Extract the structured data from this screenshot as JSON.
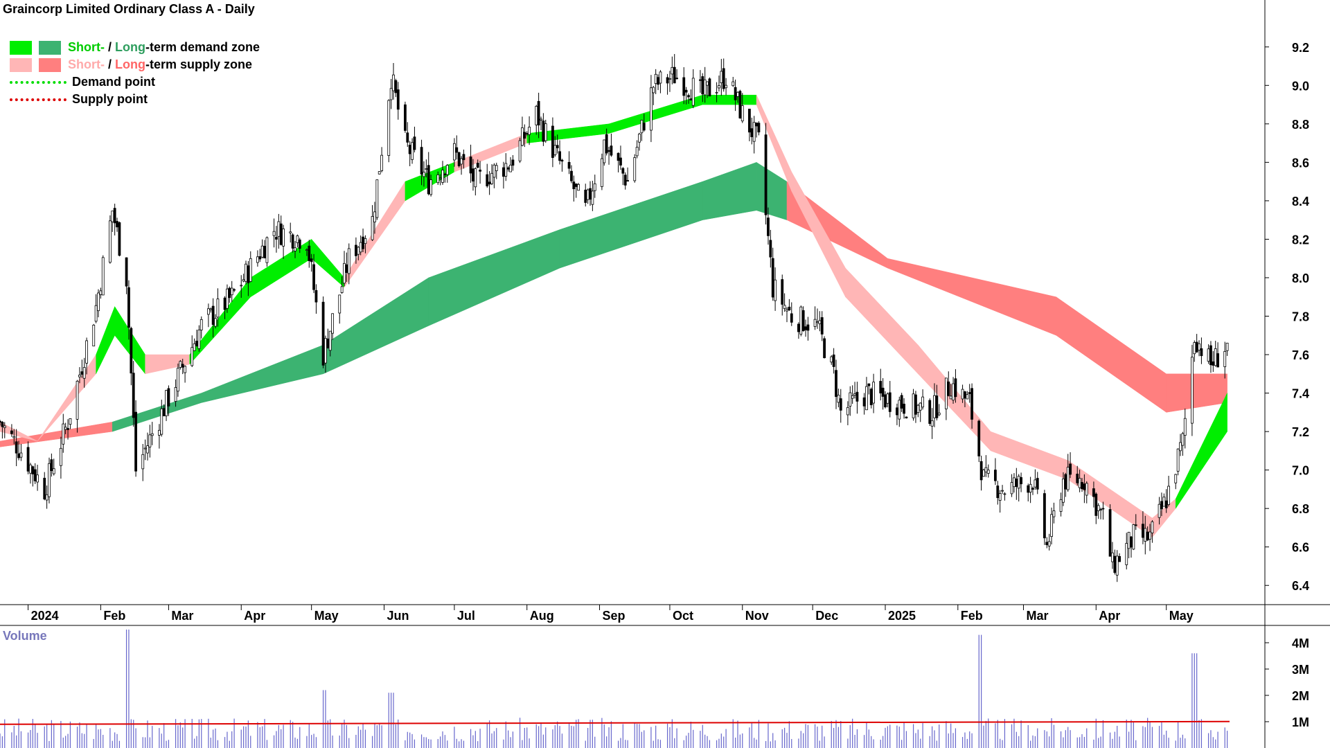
{
  "title": "Graincorp Limited Ordinary Class A - Daily",
  "legend": {
    "demand_short": "Short-",
    "demand_sep": " / ",
    "demand_long": "Long",
    "demand_rest": "-term demand zone",
    "supply_short": "Short-",
    "supply_sep": " / ",
    "supply_long": "Long",
    "supply_rest": "-term supply zone",
    "demand_point": "Demand point",
    "supply_point": "Supply point"
  },
  "volume_label": "Volume",
  "colors": {
    "short_demand": "#00ee00",
    "long_demand": "#3cb371",
    "short_supply": "#ffb6b6",
    "long_supply": "#ff7f7f",
    "overlap_supply": "#ff6a2a",
    "demand_point": "#00dd00",
    "supply_point": "#dd0000",
    "volume_bar": "#6666cc",
    "volume_avg": "#dd0000"
  },
  "chart_data": {
    "type": "candlestick",
    "title": "Graincorp Limited Ordinary Class A - Daily",
    "period": "Daily",
    "price_axis": {
      "ticks": [
        6.4,
        6.6,
        6.8,
        7.0,
        7.2,
        7.4,
        7.6,
        7.8,
        8.0,
        8.2,
        8.4,
        8.6,
        8.8,
        9.0,
        9.2
      ],
      "range": [
        6.3,
        9.3
      ],
      "side": "right"
    },
    "volume_axis": {
      "ticks": [
        "1M",
        "2M",
        "3M",
        "4M"
      ],
      "range": [
        0,
        4500000
      ],
      "side": "right"
    },
    "x_axis": {
      "labels": [
        "2024",
        "Feb",
        "Mar",
        "Apr",
        "May",
        "Jun",
        "Jul",
        "Aug",
        "Sep",
        "Oct",
        "Nov",
        "Dec",
        "2025",
        "Feb",
        "Mar",
        "Apr",
        "May"
      ]
    },
    "price_path": [
      [
        "2023-12-20",
        7.25
      ],
      [
        "2023-12-29",
        7.1
      ],
      [
        "2024-01-08",
        6.9
      ],
      [
        "2024-01-18",
        7.25
      ],
      [
        "2024-01-30",
        7.85
      ],
      [
        "2024-02-06",
        8.35
      ],
      [
        "2024-02-12",
        8.0
      ],
      [
        "2024-02-16",
        7.0
      ],
      [
        "2024-02-29",
        7.35
      ],
      [
        "2024-03-15",
        7.75
      ],
      [
        "2024-03-28",
        7.9
      ],
      [
        "2024-04-15",
        8.25
      ],
      [
        "2024-04-29",
        8.2
      ],
      [
        "2024-05-06",
        7.6
      ],
      [
        "2024-05-17",
        8.1
      ],
      [
        "2024-05-27",
        8.3
      ],
      [
        "2024-06-04",
        9.05
      ],
      [
        "2024-06-10",
        8.7
      ],
      [
        "2024-06-20",
        8.5
      ],
      [
        "2024-07-01",
        8.65
      ],
      [
        "2024-07-10",
        8.5
      ],
      [
        "2024-07-25",
        8.6
      ],
      [
        "2024-08-05",
        8.85
      ],
      [
        "2024-08-15",
        8.6
      ],
      [
        "2024-08-26",
        8.35
      ],
      [
        "2024-09-03",
        8.7
      ],
      [
        "2024-09-13",
        8.5
      ],
      [
        "2024-09-24",
        9.0
      ],
      [
        "2024-10-03",
        9.05
      ],
      [
        "2024-10-15",
        8.95
      ],
      [
        "2024-10-25",
        9.05
      ],
      [
        "2024-11-01",
        8.85
      ],
      [
        "2024-11-08",
        8.7
      ],
      [
        "2024-11-14",
        7.95
      ],
      [
        "2024-11-22",
        7.8
      ],
      [
        "2024-12-03",
        7.75
      ],
      [
        "2024-12-10",
        7.5
      ],
      [
        "2024-12-13",
        7.3
      ],
      [
        "2024-12-24",
        7.4
      ],
      [
        "2025-01-07",
        7.35
      ],
      [
        "2025-01-21",
        7.3
      ],
      [
        "2025-01-29",
        7.45
      ],
      [
        "2025-02-06",
        7.35
      ],
      [
        "2025-02-12",
        6.95
      ],
      [
        "2025-02-21",
        6.9
      ],
      [
        "2025-03-05",
        6.95
      ],
      [
        "2025-03-11",
        6.6
      ],
      [
        "2025-03-18",
        6.95
      ],
      [
        "2025-03-27",
        6.95
      ],
      [
        "2025-04-04",
        6.75
      ],
      [
        "2025-04-08",
        6.5
      ],
      [
        "2025-04-17",
        6.65
      ],
      [
        "2025-04-24",
        6.65
      ],
      [
        "2025-05-01",
        6.85
      ],
      [
        "2025-05-08",
        7.15
      ],
      [
        "2025-05-13",
        7.7
      ],
      [
        "2025-05-20",
        7.55
      ],
      [
        "2025-05-27",
        7.65
      ]
    ],
    "short_term_zone": [
      [
        "2023-12-20",
        7.2,
        7.25,
        "supply"
      ],
      [
        "2024-01-05",
        7.15,
        7.15,
        "supply"
      ],
      [
        "2024-01-30",
        7.5,
        7.6,
        "demand"
      ],
      [
        "2024-02-07",
        7.7,
        7.85,
        "demand"
      ],
      [
        "2024-02-20",
        7.5,
        7.6,
        "supply"
      ],
      [
        "2024-03-10",
        7.55,
        7.6,
        "demand"
      ],
      [
        "2024-04-05",
        7.9,
        8.0,
        "demand"
      ],
      [
        "2024-05-01",
        8.1,
        8.2,
        "demand"
      ],
      [
        "2024-05-15",
        7.95,
        8.0,
        "supply"
      ],
      [
        "2024-06-10",
        8.4,
        8.5,
        "demand"
      ],
      [
        "2024-07-01",
        8.55,
        8.6,
        "supply"
      ],
      [
        "2024-08-01",
        8.7,
        8.75,
        "demand"
      ],
      [
        "2024-09-05",
        8.75,
        8.8,
        "demand"
      ],
      [
        "2024-10-15",
        8.9,
        8.95,
        "demand"
      ],
      [
        "2024-11-07",
        8.9,
        8.95,
        "supply"
      ],
      [
        "2024-11-22",
        8.45,
        8.55,
        "supply"
      ],
      [
        "2024-12-15",
        7.9,
        8.05,
        "supply"
      ],
      [
        "2025-01-15",
        7.5,
        7.65,
        "supply"
      ],
      [
        "2025-02-15",
        7.1,
        7.2,
        "supply"
      ],
      [
        "2025-03-20",
        6.95,
        7.05,
        "supply"
      ],
      [
        "2025-04-25",
        6.65,
        6.75,
        "supply"
      ],
      [
        "2025-05-05",
        6.8,
        6.85,
        "demand"
      ],
      [
        "2025-05-27",
        7.2,
        7.4,
        "demand"
      ]
    ],
    "long_term_zone": [
      [
        "2023-12-20",
        7.12,
        7.15,
        "supply"
      ],
      [
        "2024-02-06",
        7.2,
        7.25,
        "demand"
      ],
      [
        "2024-03-15",
        7.35,
        7.4,
        "demand"
      ],
      [
        "2024-05-06",
        7.5,
        7.65,
        "demand"
      ],
      [
        "2024-06-20",
        7.75,
        8.0,
        "demand"
      ],
      [
        "2024-08-15",
        8.05,
        8.25,
        "demand"
      ],
      [
        "2024-10-15",
        8.3,
        8.5,
        "demand"
      ],
      [
        "2024-11-07",
        8.35,
        8.6,
        "demand"
      ],
      [
        "2024-11-20",
        8.3,
        8.5,
        "supply"
      ],
      [
        "2025-01-02",
        8.05,
        8.1,
        "supply"
      ],
      [
        "2025-03-15",
        7.7,
        7.9,
        "supply"
      ],
      [
        "2025-05-01",
        7.3,
        7.5,
        "supply"
      ],
      [
        "2025-05-27",
        7.35,
        7.5,
        "supply"
      ]
    ],
    "volume_peaks": [
      [
        "2024-02-12",
        4500000
      ],
      [
        "2024-05-06",
        2200000
      ],
      [
        "2024-06-04",
        2100000
      ],
      [
        "2025-02-10",
        4300000
      ],
      [
        "2025-05-13",
        3600000
      ]
    ],
    "volume_average": 900000,
    "legend": [
      "Short- / Long-term demand zone",
      "Short- / Long-term supply zone",
      "Demand point",
      "Supply point"
    ]
  }
}
